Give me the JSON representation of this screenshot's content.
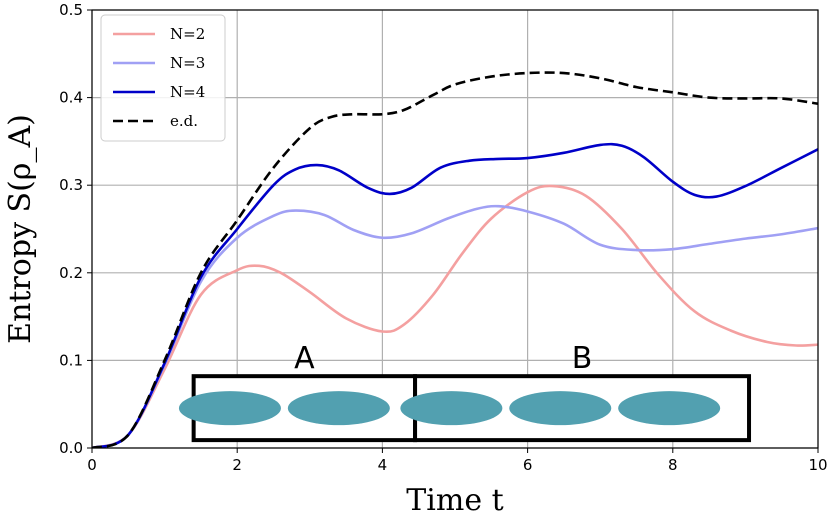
{
  "chart_data": {
    "type": "line",
    "title": "",
    "xlabel": "Time t",
    "ylabel": "Entropy S(ρ_A)",
    "xlim": [
      0,
      10
    ],
    "ylim": [
      0,
      0.5
    ],
    "xticks": [
      "0",
      "2",
      "4",
      "6",
      "8",
      "10"
    ],
    "yticks": [
      "0.0",
      "0.1",
      "0.2",
      "0.3",
      "0.4",
      "0.5"
    ],
    "grid": true,
    "legend": "top-left",
    "series": [
      {
        "name": "N=2",
        "color": "#f4a0a0",
        "style": "solid",
        "x": [
          0,
          0.5,
          1.0,
          1.5,
          2.0,
          2.3,
          2.6,
          3.0,
          3.5,
          4.0,
          4.3,
          4.7,
          5.1,
          5.5,
          6.0,
          6.35,
          6.8,
          7.3,
          7.8,
          8.3,
          8.8,
          9.3,
          9.7,
          10.0
        ],
        "y": [
          0.0,
          0.015,
          0.09,
          0.175,
          0.203,
          0.208,
          0.2,
          0.178,
          0.148,
          0.133,
          0.141,
          0.175,
          0.222,
          0.262,
          0.292,
          0.299,
          0.288,
          0.25,
          0.198,
          0.156,
          0.134,
          0.121,
          0.117,
          0.118
        ]
      },
      {
        "name": "N=3",
        "color": "#a0a0f4",
        "style": "solid",
        "x": [
          0,
          0.5,
          1.0,
          1.5,
          2.0,
          2.5,
          2.8,
          3.2,
          3.6,
          4.0,
          4.4,
          4.9,
          5.3,
          5.6,
          6.0,
          6.5,
          7.0,
          7.5,
          8.0,
          8.5,
          9.0,
          9.5,
          10.0
        ],
        "y": [
          0.0,
          0.015,
          0.095,
          0.19,
          0.24,
          0.265,
          0.271,
          0.266,
          0.249,
          0.24,
          0.245,
          0.262,
          0.273,
          0.276,
          0.27,
          0.256,
          0.232,
          0.226,
          0.227,
          0.233,
          0.239,
          0.244,
          0.251
        ]
      },
      {
        "name": "N=4",
        "color": "#0000c8",
        "style": "solid",
        "x": [
          0,
          0.5,
          1.0,
          1.5,
          2.0,
          2.5,
          2.8,
          3.1,
          3.4,
          3.8,
          4.1,
          4.4,
          4.8,
          5.2,
          5.6,
          6.0,
          6.5,
          7.0,
          7.3,
          7.6,
          8.0,
          8.3,
          8.6,
          9.0,
          9.5,
          10.0
        ],
        "y": [
          0.0,
          0.015,
          0.097,
          0.195,
          0.25,
          0.3,
          0.318,
          0.323,
          0.317,
          0.297,
          0.29,
          0.297,
          0.32,
          0.328,
          0.33,
          0.331,
          0.337,
          0.346,
          0.345,
          0.332,
          0.304,
          0.289,
          0.287,
          0.299,
          0.32,
          0.341
        ]
      },
      {
        "name": "e.d.",
        "color": "#000000",
        "style": "dashed",
        "x": [
          0,
          0.5,
          1.0,
          1.5,
          2.0,
          2.5,
          3.0,
          3.3,
          3.6,
          4.0,
          4.3,
          4.7,
          5.0,
          5.5,
          6.0,
          6.5,
          7.0,
          7.5,
          8.0,
          8.5,
          9.0,
          9.5,
          10.0
        ],
        "y": [
          0.0,
          0.015,
          0.1,
          0.2,
          0.26,
          0.32,
          0.365,
          0.378,
          0.381,
          0.381,
          0.386,
          0.403,
          0.415,
          0.424,
          0.428,
          0.428,
          0.422,
          0.412,
          0.406,
          0.4,
          0.399,
          0.399,
          0.393
        ]
      }
    ],
    "annotations": {
      "left_label": "A",
      "right_label": "B",
      "ellipse_color": "#52a0b0",
      "ellipses": [
        1.9,
        3.4,
        4.95,
        6.45,
        7.95
      ],
      "left_box_x": [
        1.4,
        4.45
      ],
      "right_box_x": [
        4.45,
        9.05
      ],
      "box_y": [
        0.009,
        0.082
      ]
    }
  }
}
